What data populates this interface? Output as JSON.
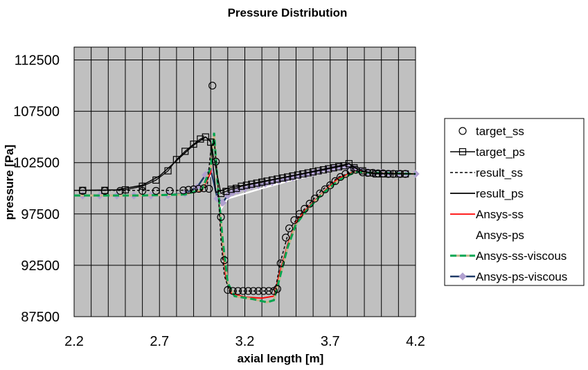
{
  "chart_data": {
    "type": "line",
    "title": "Pressure Distribution",
    "xlabel": "axial length [m]",
    "ylabel": "pressure [Pa]",
    "xlim": [
      2.2,
      4.2
    ],
    "ylim": [
      87500,
      113750
    ],
    "x_ticks": [
      "2.2",
      "2.7",
      "3.2",
      "3.7",
      "4.2"
    ],
    "y_ticks": [
      "87500",
      "92500",
      "97500",
      "102500",
      "107500",
      "112500"
    ],
    "grid": true,
    "legend_position": "right",
    "colors": {
      "plot_background": "#c0c0c0",
      "grid": "#000000"
    },
    "series": [
      {
        "name": "target_ss",
        "color": "#000000",
        "marker": "circle",
        "points": [
          [
            2.25,
            99750
          ],
          [
            2.38,
            99750
          ],
          [
            2.47,
            99750
          ],
          [
            2.6,
            99750
          ],
          [
            2.68,
            99750
          ],
          [
            2.76,
            99750
          ],
          [
            2.84,
            99800
          ],
          [
            2.87,
            99850
          ],
          [
            2.9,
            99900
          ],
          [
            2.93,
            99950
          ],
          [
            2.96,
            100000
          ],
          [
            2.99,
            99950
          ],
          [
            3.01,
            110000
          ],
          [
            3.03,
            102600
          ],
          [
            3.06,
            97200
          ],
          [
            3.08,
            93000
          ],
          [
            3.1,
            90100
          ],
          [
            3.13,
            90000
          ],
          [
            3.16,
            90000
          ],
          [
            3.19,
            90000
          ],
          [
            3.22,
            90000
          ],
          [
            3.25,
            90000
          ],
          [
            3.28,
            90000
          ],
          [
            3.31,
            90000
          ],
          [
            3.34,
            90000
          ],
          [
            3.37,
            90000
          ],
          [
            3.39,
            90200
          ],
          [
            3.41,
            92700
          ],
          [
            3.44,
            95200
          ],
          [
            3.46,
            96100
          ],
          [
            3.49,
            96900
          ],
          [
            3.52,
            97500
          ],
          [
            3.55,
            98000
          ],
          [
            3.58,
            98500
          ],
          [
            3.61,
            99000
          ],
          [
            3.64,
            99500
          ],
          [
            3.67,
            99900
          ],
          [
            3.7,
            100300
          ],
          [
            3.73,
            100700
          ],
          [
            3.76,
            101100
          ],
          [
            3.79,
            101400
          ],
          [
            3.82,
            101700
          ],
          [
            3.85,
            101800
          ],
          [
            3.89,
            101550
          ],
          [
            3.92,
            101500
          ],
          [
            3.95,
            101500
          ],
          [
            3.98,
            101450
          ],
          [
            4.01,
            101450
          ],
          [
            4.04,
            101400
          ],
          [
            4.07,
            101400
          ],
          [
            4.11,
            101400
          ],
          [
            4.14,
            101400
          ]
        ]
      },
      {
        "name": "target_ps",
        "color": "#000000",
        "marker": "square",
        "points": [
          [
            2.25,
            99800
          ],
          [
            2.38,
            99800
          ],
          [
            2.5,
            99850
          ],
          [
            2.6,
            100200
          ],
          [
            2.68,
            100800
          ],
          [
            2.75,
            101700
          ],
          [
            2.8,
            102800
          ],
          [
            2.85,
            103600
          ],
          [
            2.9,
            104300
          ],
          [
            2.94,
            104800
          ],
          [
            2.97,
            105000
          ],
          [
            3.0,
            104500
          ],
          [
            3.06,
            99500
          ],
          [
            3.09,
            99700
          ],
          [
            3.12,
            99900
          ],
          [
            3.15,
            100000
          ],
          [
            3.18,
            100200
          ],
          [
            3.21,
            100300
          ],
          [
            3.24,
            100400
          ],
          [
            3.27,
            100500
          ],
          [
            3.3,
            100600
          ],
          [
            3.33,
            100700
          ],
          [
            3.36,
            100800
          ],
          [
            3.39,
            100900
          ],
          [
            3.42,
            101000
          ],
          [
            3.45,
            101100
          ],
          [
            3.48,
            101200
          ],
          [
            3.51,
            101300
          ],
          [
            3.54,
            101400
          ],
          [
            3.57,
            101500
          ],
          [
            3.6,
            101600
          ],
          [
            3.63,
            101700
          ],
          [
            3.66,
            101800
          ],
          [
            3.69,
            101900
          ],
          [
            3.72,
            102000
          ],
          [
            3.75,
            102100
          ],
          [
            3.78,
            102200
          ],
          [
            3.81,
            102400
          ],
          [
            3.84,
            102000
          ],
          [
            3.89,
            101700
          ],
          [
            3.93,
            101500
          ],
          [
            3.97,
            101400
          ],
          [
            4.01,
            101400
          ],
          [
            4.05,
            101400
          ],
          [
            4.1,
            101400
          ],
          [
            4.14,
            101400
          ]
        ]
      },
      {
        "name": "result_ss",
        "color": "#000000",
        "dash": "dashed",
        "points": [
          [
            2.2,
            99800
          ],
          [
            2.6,
            99800
          ],
          [
            2.8,
            99800
          ],
          [
            2.95,
            99850
          ],
          [
            2.98,
            100300
          ],
          [
            3.0,
            103600
          ],
          [
            3.02,
            104800
          ],
          [
            3.04,
            101000
          ],
          [
            3.06,
            95000
          ],
          [
            3.08,
            91500
          ],
          [
            3.11,
            90000
          ],
          [
            3.35,
            90000
          ],
          [
            3.38,
            90300
          ],
          [
            3.41,
            92900
          ],
          [
            3.46,
            96000
          ],
          [
            3.55,
            98000
          ],
          [
            3.65,
            99800
          ],
          [
            3.75,
            101100
          ],
          [
            3.85,
            101700
          ],
          [
            3.95,
            101500
          ],
          [
            4.2,
            101400
          ]
        ]
      },
      {
        "name": "result_ps",
        "color": "#000000",
        "dash": "solid",
        "points": [
          [
            2.2,
            99800
          ],
          [
            2.45,
            99850
          ],
          [
            2.6,
            100300
          ],
          [
            2.7,
            101200
          ],
          [
            2.8,
            102700
          ],
          [
            2.9,
            104200
          ],
          [
            2.97,
            105000
          ],
          [
            3.0,
            104600
          ],
          [
            3.03,
            99600
          ],
          [
            3.1,
            100000
          ],
          [
            3.3,
            100650
          ],
          [
            3.5,
            101300
          ],
          [
            3.7,
            102000
          ],
          [
            3.81,
            102400
          ],
          [
            3.87,
            101800
          ],
          [
            3.95,
            101450
          ],
          [
            4.2,
            101400
          ]
        ]
      },
      {
        "name": "Ansys-ss",
        "color": "#ff0000",
        "dash": "solid",
        "points": [
          [
            2.2,
            99300
          ],
          [
            2.6,
            99300
          ],
          [
            2.85,
            99400
          ],
          [
            2.95,
            99800
          ],
          [
            3.0,
            101500
          ],
          [
            3.02,
            105400
          ],
          [
            3.04,
            100500
          ],
          [
            3.06,
            96000
          ],
          [
            3.09,
            91200
          ],
          [
            3.12,
            89800
          ],
          [
            3.2,
            89400
          ],
          [
            3.3,
            89300
          ],
          [
            3.37,
            89500
          ],
          [
            3.4,
            91500
          ],
          [
            3.45,
            94500
          ],
          [
            3.5,
            96700
          ],
          [
            3.55,
            97800
          ],
          [
            3.65,
            99500
          ],
          [
            3.75,
            101000
          ],
          [
            3.85,
            101700
          ],
          [
            3.95,
            101500
          ],
          [
            4.2,
            101400
          ]
        ]
      },
      {
        "name": "Ansys-ps",
        "color": "#ffffff",
        "dash": "solid",
        "points": [
          [
            2.2,
            99300
          ],
          [
            2.6,
            99300
          ],
          [
            2.85,
            99400
          ],
          [
            2.95,
            100000
          ],
          [
            3.0,
            101400
          ],
          [
            3.03,
            99800
          ],
          [
            3.06,
            98000
          ],
          [
            3.1,
            99000
          ],
          [
            3.3,
            100000
          ],
          [
            3.5,
            100900
          ],
          [
            3.7,
            101700
          ],
          [
            3.82,
            102100
          ],
          [
            3.9,
            101700
          ],
          [
            4.0,
            101500
          ],
          [
            4.2,
            101400
          ]
        ]
      },
      {
        "name": "Ansys-ss-viscous",
        "color": "#00a550",
        "dash": "dashed",
        "points": [
          [
            2.2,
            99300
          ],
          [
            2.6,
            99300
          ],
          [
            2.85,
            99400
          ],
          [
            2.95,
            99900
          ],
          [
            3.0,
            102000
          ],
          [
            3.02,
            105400
          ],
          [
            3.04,
            100500
          ],
          [
            3.07,
            95000
          ],
          [
            3.1,
            90800
          ],
          [
            3.14,
            89500
          ],
          [
            3.25,
            89200
          ],
          [
            3.33,
            88900
          ],
          [
            3.37,
            89100
          ],
          [
            3.4,
            91000
          ],
          [
            3.45,
            94200
          ],
          [
            3.5,
            96500
          ],
          [
            3.56,
            97800
          ],
          [
            3.65,
            99400
          ],
          [
            3.75,
            100800
          ],
          [
            3.85,
            101600
          ],
          [
            3.95,
            101500
          ],
          [
            4.2,
            101400
          ]
        ]
      },
      {
        "name": "Ansys-ps-viscous",
        "color": "#1f3a68",
        "marker": "diamond",
        "markerColor": "#b0a0d0",
        "points": [
          [
            2.25,
            99300
          ],
          [
            2.35,
            99300
          ],
          [
            2.45,
            99300
          ],
          [
            2.55,
            99300
          ],
          [
            2.65,
            99300
          ],
          [
            2.75,
            99350
          ],
          [
            2.85,
            99500
          ],
          [
            2.92,
            100100
          ],
          [
            2.97,
            101300
          ],
          [
            3.0,
            101800
          ],
          [
            3.04,
            99000
          ],
          [
            3.07,
            98600
          ],
          [
            3.1,
            99300
          ],
          [
            3.13,
            99600
          ],
          [
            3.16,
            99800
          ],
          [
            3.2,
            100000
          ],
          [
            3.24,
            100200
          ],
          [
            3.28,
            100300
          ],
          [
            3.32,
            100450
          ],
          [
            3.36,
            100600
          ],
          [
            3.4,
            100750
          ],
          [
            3.44,
            100900
          ],
          [
            3.48,
            101050
          ],
          [
            3.52,
            101200
          ],
          [
            3.56,
            101350
          ],
          [
            3.6,
            101500
          ],
          [
            3.64,
            101650
          ],
          [
            3.68,
            101800
          ],
          [
            3.72,
            101950
          ],
          [
            3.76,
            102050
          ],
          [
            3.8,
            102100
          ],
          [
            3.84,
            101900
          ],
          [
            3.88,
            101700
          ],
          [
            3.92,
            101600
          ],
          [
            3.96,
            101500
          ],
          [
            4.0,
            101500
          ],
          [
            4.05,
            101450
          ],
          [
            4.1,
            101400
          ],
          [
            4.15,
            101400
          ],
          [
            4.2,
            101400
          ]
        ]
      }
    ]
  }
}
